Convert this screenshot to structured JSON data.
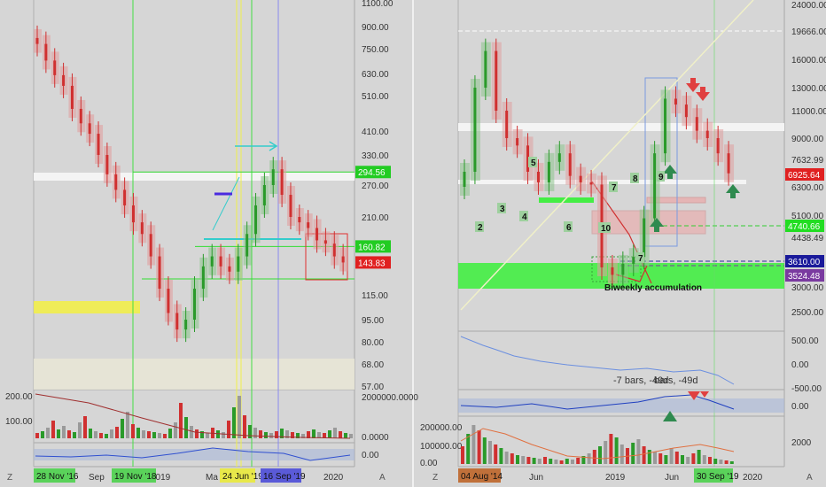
{
  "left_panel": {
    "price_axis_ticks": [
      "1100.00",
      "900.00",
      "750.00",
      "630.00",
      "510.00",
      "410.00",
      "330.00",
      "270.00",
      "210.00",
      "160.00",
      "115.00",
      "95.00",
      "80.00",
      "68.00",
      "57.00"
    ],
    "price_badges": [
      {
        "text": "294.56",
        "color": "#22cc22"
      },
      {
        "text": "160.82",
        "color": "#22cc22"
      },
      {
        "text": "143.83",
        "color": "#e02020"
      }
    ],
    "volume_axis_ticks": [
      "2000000.0000",
      "0.0000"
    ],
    "volume_left_ticks": [
      "200.00",
      "100.00"
    ],
    "indicator_axis_ticks": [
      "0.00"
    ],
    "time_labels": [
      "Sep",
      "2019",
      "Ma",
      "2020"
    ],
    "date_badges": [
      {
        "text": "28 Nov '16",
        "color": "#5ad25a"
      },
      {
        "text": "19 Nov '18",
        "color": "#5ad25a"
      },
      {
        "text": "24 Jun '19",
        "color": "#e8e84a"
      },
      {
        "text": "16 Sep '19",
        "color": "#5a5ad8"
      }
    ],
    "logo_letter": "Z",
    "auto_button": "A"
  },
  "right_panel": {
    "price_axis_ticks": [
      "24000.00",
      "19666.00",
      "16000.00",
      "13000.00",
      "11000.00",
      "9000.00",
      "7632.99",
      "6300.00",
      "5100.00",
      "4438.49",
      "3000.00",
      "2500.00"
    ],
    "price_badges": [
      {
        "text": "6925.64",
        "color": "#e02020"
      },
      {
        "text": "4740.66",
        "color": "#22dd22"
      },
      {
        "text": "3610.00",
        "color": "#1a1a9a"
      },
      {
        "text": "3524.48",
        "color": "#7a3aa0"
      }
    ],
    "wave_labels": [
      "2",
      "3",
      "4",
      "5",
      "6",
      "7",
      "8",
      "9",
      "10",
      "7"
    ],
    "annotation": "Biweekly accumulation",
    "indicator1_ticks": [
      "500.00",
      "0.00",
      "-500.00"
    ],
    "indicator1_text": "-7 bars, -49d",
    "indicator1_text_overlap": "bars, -49d",
    "indicator2_ticks": [
      "0.00"
    ],
    "volume_ticks": [
      "200000.00",
      "100000.00",
      "0.00"
    ],
    "volume_right_ticks": [
      "2000"
    ],
    "time_labels": [
      "Jun",
      "2019",
      "Jun",
      "2020"
    ],
    "date_badges": [
      {
        "text": "04 Aug '14",
        "color": "#c0703a"
      },
      {
        "text": "30 Sep '19",
        "color": "#5ad25a"
      }
    ],
    "logo_letter": "Z",
    "auto_button": "A"
  },
  "chart_data": [
    {
      "type": "candlestick",
      "title": "",
      "scale": "log",
      "price_ticks": [
        1100,
        900,
        750,
        630,
        510,
        410,
        330,
        270,
        210,
        160,
        115,
        95,
        80,
        68,
        57
      ],
      "horizontal_levels": [
        294.56,
        160.82,
        143.83
      ],
      "series": [
        {
          "name": "",
          "values": [
            780,
            690,
            620,
            560,
            470,
            430,
            400,
            330,
            290,
            260,
            230,
            200,
            180,
            150,
            120,
            100,
            88,
            95,
            120,
            140,
            150,
            140,
            135,
            150,
            180,
            230,
            270,
            300,
            250,
            210,
            200,
            190,
            170,
            165,
            150,
            143.83
          ]
        }
      ]
    },
    {
      "type": "candlestick",
      "title": "",
      "scale": "log",
      "price_ticks": [
        24000,
        19666,
        16000,
        13000,
        11000,
        9000,
        7632.99,
        6300,
        5100,
        4438.49,
        3000,
        2500
      ],
      "horizontal_levels": [
        19666,
        6925.64,
        4740.66,
        3610,
        3524.48
      ],
      "series": [
        {
          "name": "",
          "values": [
            7000,
            13000,
            17000,
            11000,
            9000,
            8500,
            7000,
            6500,
            7500,
            8000,
            6800,
            6500,
            6400,
            3500,
            3300,
            3600,
            3800,
            5000,
            8000,
            12000,
            11500,
            10500,
            9500,
            9000,
            8000,
            6925.64
          ]
        }
      ]
    }
  ]
}
